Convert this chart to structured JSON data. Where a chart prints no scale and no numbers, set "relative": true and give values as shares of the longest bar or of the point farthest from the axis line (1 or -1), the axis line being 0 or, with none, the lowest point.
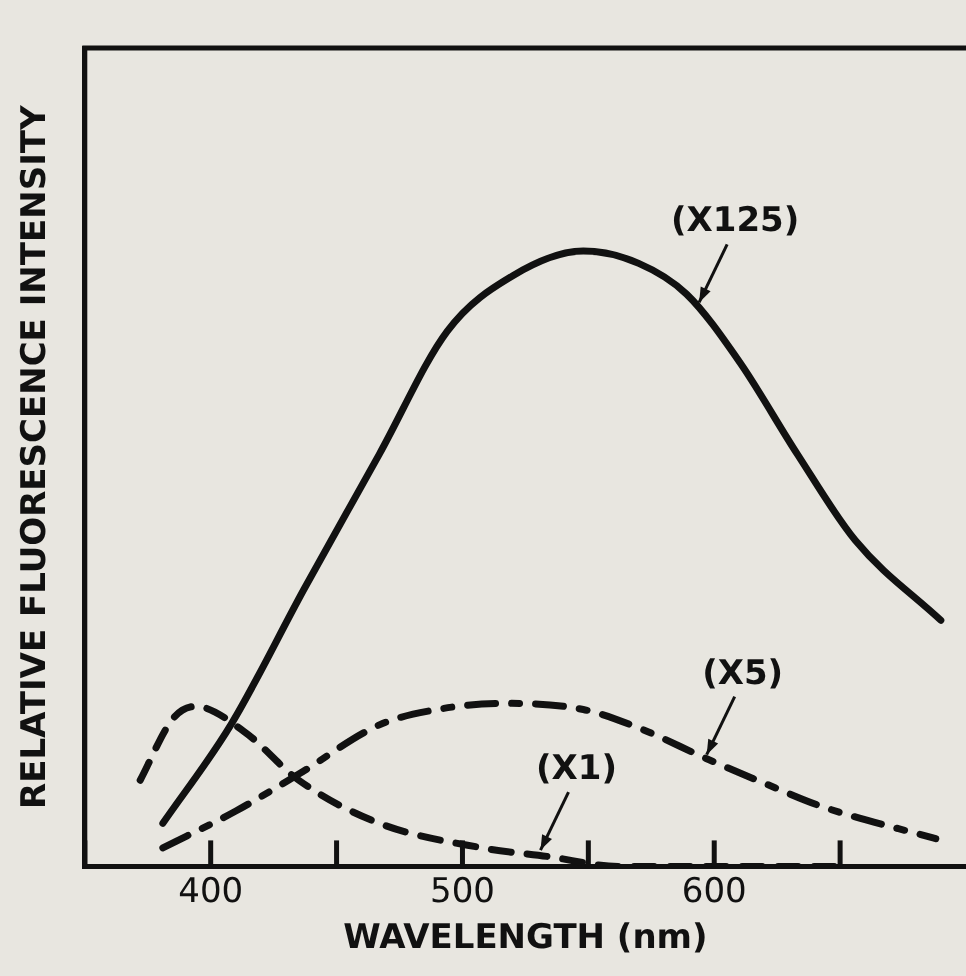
{
  "chart_data": {
    "type": "line",
    "relative": true,
    "xlabel": "WAVELENGTH (nm)",
    "ylabel": "RELATIVE FLUORESCENCE INTENSITY",
    "xlim": [
      350,
      700
    ],
    "xticks": [
      {
        "value": 350,
        "label": null
      },
      400,
      {
        "value": 450,
        "label": null
      },
      500,
      {
        "value": 550,
        "label": null
      },
      600,
      {
        "value": 650,
        "label": null
      }
    ],
    "grid": false,
    "legend": false,
    "marker": "none",
    "series": [
      {
        "color": "#111111",
        "line_style": "solid",
        "x": [
          381,
          408,
          437,
          467,
          494,
          520,
          548,
          570,
          589,
          610,
          633,
          656,
          690
        ],
        "values": [
          0.07,
          0.23,
          0.45,
          0.67,
          0.87,
          0.96,
          1.0,
          0.98,
          0.93,
          0.82,
          0.67,
          0.53,
          0.4
        ]
      },
      {
        "color": "#111111",
        "line_style": "dashed",
        "x": [
          381,
          410,
          435,
          467,
          490,
          516,
          548,
          570,
          597,
          620,
          643,
          688
        ],
        "values": [
          0.03,
          0.09,
          0.15,
          0.23,
          0.255,
          0.265,
          0.255,
          0.225,
          0.175,
          0.135,
          0.097,
          0.045
        ]
      },
      {
        "color": "#111111",
        "line_style": "dotted",
        "x": [
          372,
          385,
          394,
          413,
          435,
          467,
          508,
          534,
          562,
          600,
          650
        ],
        "values": [
          0.14,
          0.24,
          0.26,
          0.22,
          0.14,
          0.07,
          0.03,
          0.016,
          0,
          0,
          0
        ]
      }
    ],
    "annotations": [
      {
        "text": "(X125)",
        "x": 594,
        "y": 0.91
      },
      {
        "text": "(X5)",
        "x": 597,
        "y": 0.175
      },
      {
        "text": "(X1)",
        "x": 531,
        "y": 0.02
      }
    ]
  }
}
